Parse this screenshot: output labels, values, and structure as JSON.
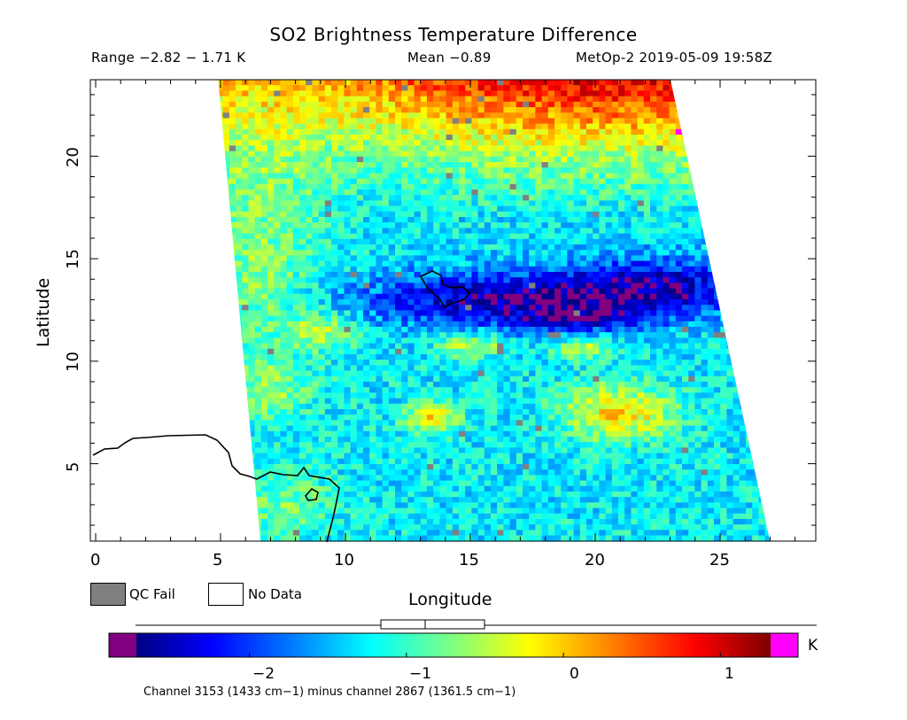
{
  "header": {
    "title": "SO2 Brightness Temperature Difference",
    "range": "Range −2.82 − 1.71 K",
    "mean": "Mean −0.89",
    "satellite": "MetOp-2 2019-05-09 19:58Z"
  },
  "axes": {
    "xlabel": "Longitude",
    "ylabel": "Latitude",
    "xlim": [
      0,
      29
    ],
    "ylim": [
      1.2,
      23.8
    ],
    "xticks": [
      0,
      5,
      10,
      15,
      20,
      25
    ],
    "yticks": [
      5,
      10,
      15,
      20
    ]
  },
  "legend": {
    "qc_fail": "QC Fail",
    "no_data": "No Data",
    "qc_fail_color": "#808080"
  },
  "colorbar": {
    "unit": "K",
    "ticks": [
      "−2",
      "−1",
      "0",
      "1"
    ],
    "tick_values": [
      -2,
      -1,
      0,
      1
    ],
    "min": -2.72,
    "max": 1.32,
    "under_color": "#800080",
    "over_color": "#ff00ff"
  },
  "footnote": "Channel 3153 (1433 cm−1) minus channel 2867 (1361.5 cm−1)",
  "chart_data": {
    "type": "heatmap",
    "title": "SO2 Brightness Temperature Difference",
    "xlabel": "Longitude",
    "ylabel": "Latitude",
    "unit": "K",
    "range": [
      -2.82,
      1.71
    ],
    "mean": -0.89,
    "swath_corners_lonlat": [
      [
        4.9,
        23.8
      ],
      [
        23.0,
        23.8
      ],
      [
        27.0,
        1.2
      ],
      [
        6.6,
        1.2
      ]
    ],
    "features": [
      {
        "name": "low-value band",
        "lon_range": [
          12,
          24
        ],
        "lat_range": [
          11,
          15
        ],
        "approx_value": -2.3
      },
      {
        "name": "high-value region",
        "lon_range": [
          9,
          23
        ],
        "lat_range": [
          19,
          23.8
        ],
        "approx_value": 0.6
      },
      {
        "name": "warm patch",
        "lon_range": [
          12.5,
          15
        ],
        "lat_range": [
          6,
          8
        ],
        "approx_value": 0.2
      },
      {
        "name": "warm patch",
        "lon_range": [
          18.5,
          23
        ],
        "lat_range": [
          5.5,
          9
        ],
        "approx_value": 0.3
      }
    ]
  }
}
